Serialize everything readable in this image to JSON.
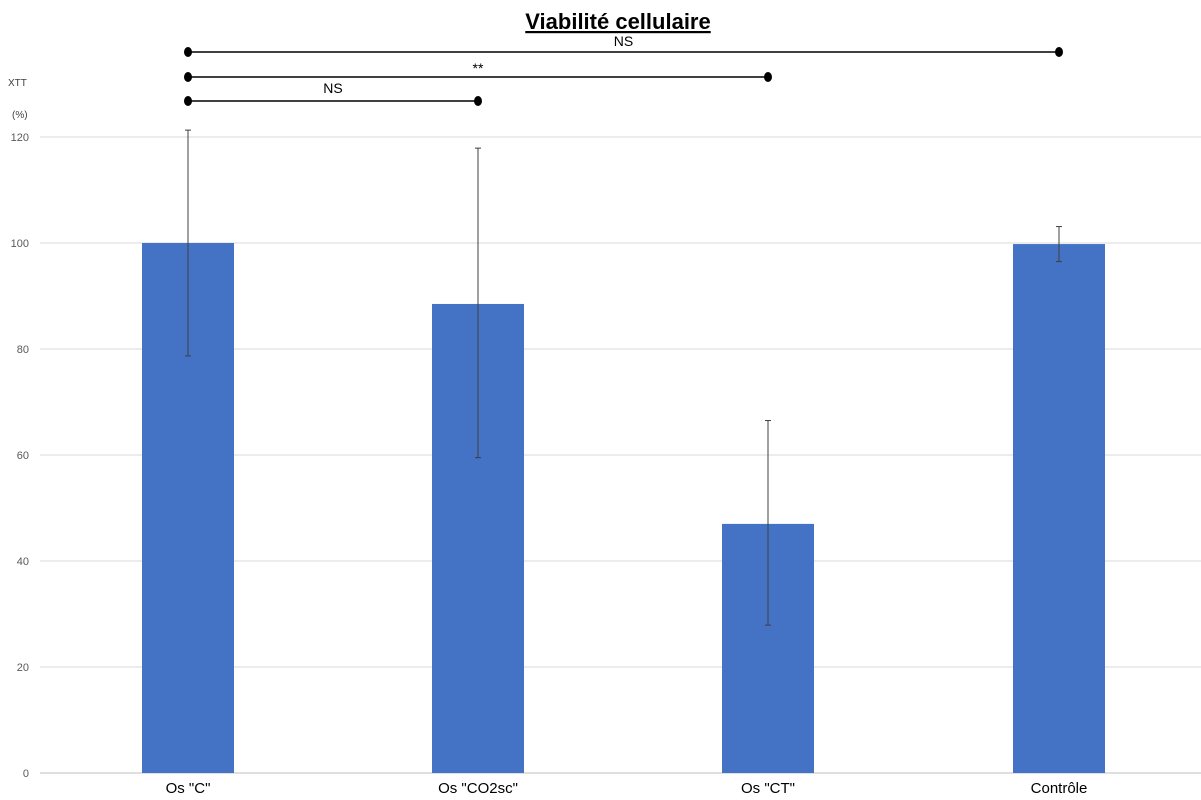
{
  "chart_data": {
    "type": "bar",
    "title": "Viabilité cellulaire",
    "ylabel_line1": "XTT",
    "ylabel_line2": "(%)",
    "categories": [
      "Os \"C\"",
      "Os \"CO2sc\"",
      "Os \"CT\"",
      "Contrôle"
    ],
    "values": [
      100,
      88.5,
      47,
      99.8
    ],
    "error_upper": [
      121.3,
      117.9,
      66.5,
      103.1
    ],
    "error_lower": [
      78.7,
      59.5,
      27.9,
      96.5
    ],
    "ylim": [
      0,
      120
    ],
    "yticks": [
      0,
      20,
      40,
      60,
      80,
      100,
      120
    ],
    "grid": true,
    "bar_color": "#4472c4",
    "significance": [
      {
        "from": 0,
        "to": 3,
        "label": "NS"
      },
      {
        "from": 0,
        "to": 2,
        "label": "**"
      },
      {
        "from": 0,
        "to": 1,
        "label": "NS"
      }
    ]
  }
}
